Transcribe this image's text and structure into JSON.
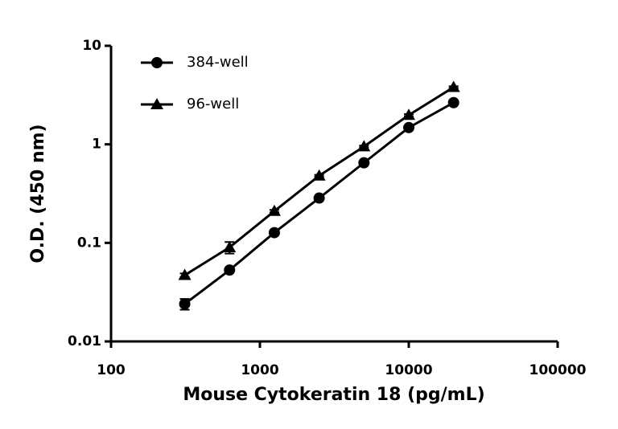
{
  "chart_data": {
    "type": "scatter",
    "x_label": "Mouse Cytokeratin 18 (pg/mL)",
    "y_label": "O.D. (450 nm)",
    "log_x": true,
    "log_y": true,
    "x": [
      312.5,
      625,
      1250,
      2500,
      5000,
      10000,
      20000
    ],
    "series": [
      {
        "name": "384-well",
        "marker": "circle",
        "color": "#000000",
        "values": [
          0.024,
          0.053,
          0.127,
          0.285,
          0.65,
          1.48,
          2.65
        ],
        "errors": [
          0.003,
          0.002,
          0.004,
          0.008,
          0.02,
          0.05,
          0.08
        ]
      },
      {
        "name": "96-well",
        "marker": "triangle",
        "color": "#000000",
        "values": [
          0.047,
          0.09,
          0.21,
          0.48,
          0.95,
          1.98,
          3.8
        ],
        "errors": [
          0.002,
          0.012,
          0.006,
          0.01,
          0.02,
          0.05,
          0.08
        ]
      }
    ],
    "xlim": [
      100,
      100000
    ],
    "xticks": [
      100,
      1000,
      10000,
      100000
    ],
    "ylim": [
      0.01,
      10
    ],
    "yticks": [
      0.01,
      0.1,
      1,
      10
    ],
    "legend": "top-left"
  }
}
